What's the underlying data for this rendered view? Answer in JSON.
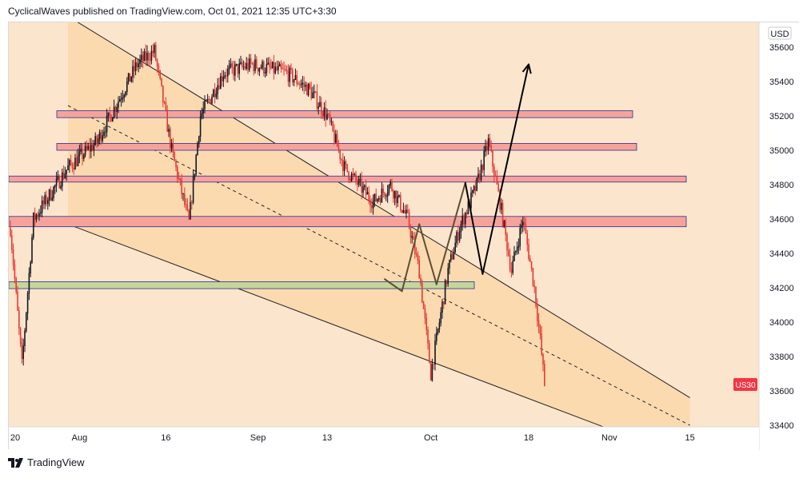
{
  "header": {
    "publish_line": "CyclicalWaves published on TradingView.com, Oct 01, 2021 12:35 UTC+3:30"
  },
  "footer": {
    "logo_text": "TradingView"
  },
  "colors": {
    "background": "#fce5cd",
    "channel_fill": "#fbd5a6",
    "candle_down": "#e53935",
    "candle_up": "#131722",
    "zone_red": "#f5a39a",
    "zone_green": "#c5d69a",
    "zone_border": "#2a2e8f",
    "badge": "#f23645",
    "projection": "#5d4e37",
    "arrow": "#000000"
  },
  "chart_data": {
    "type": "candlestick",
    "symbol": "US30",
    "currency_label": "USD",
    "last_price_label": "US30",
    "y_ticks": [
      33400,
      33600,
      33800,
      34000,
      34200,
      34400,
      34600,
      34800,
      35000,
      35200,
      35400,
      35600
    ],
    "x_ticks": [
      "20",
      "Aug",
      "16",
      "Sep",
      "13",
      "Oct",
      "18",
      "Nov",
      "15"
    ],
    "horizontal_zones": [
      {
        "color": "red",
        "low": 35190,
        "high": 35230
      },
      {
        "color": "red",
        "low": 35000,
        "high": 35040
      },
      {
        "color": "red",
        "low": 34815,
        "high": 34850
      },
      {
        "color": "red",
        "low": 34555,
        "high": 34615
      },
      {
        "color": "green",
        "low": 34195,
        "high": 34235
      }
    ],
    "down_channel": {
      "upper": [
        [
          "Jul 30",
          35780
        ],
        [
          "Nov 15",
          33560
        ]
      ],
      "median": [
        [
          "Jul 30",
          35260
        ],
        [
          "Nov 15",
          33400
        ]
      ],
      "lower": [
        [
          "Jul 30",
          34570
        ],
        [
          "Nov 15",
          33200
        ]
      ]
    },
    "projected_path": [
      [
        "Sep 23",
        34250
      ],
      [
        "Sep 26",
        34180
      ],
      [
        "Sep 29",
        34570
      ],
      [
        "Oct 2",
        34220
      ],
      [
        "Oct 7",
        34810
      ],
      [
        "Oct 10",
        34280
      ],
      [
        "Oct 18",
        35500
      ]
    ]
  }
}
